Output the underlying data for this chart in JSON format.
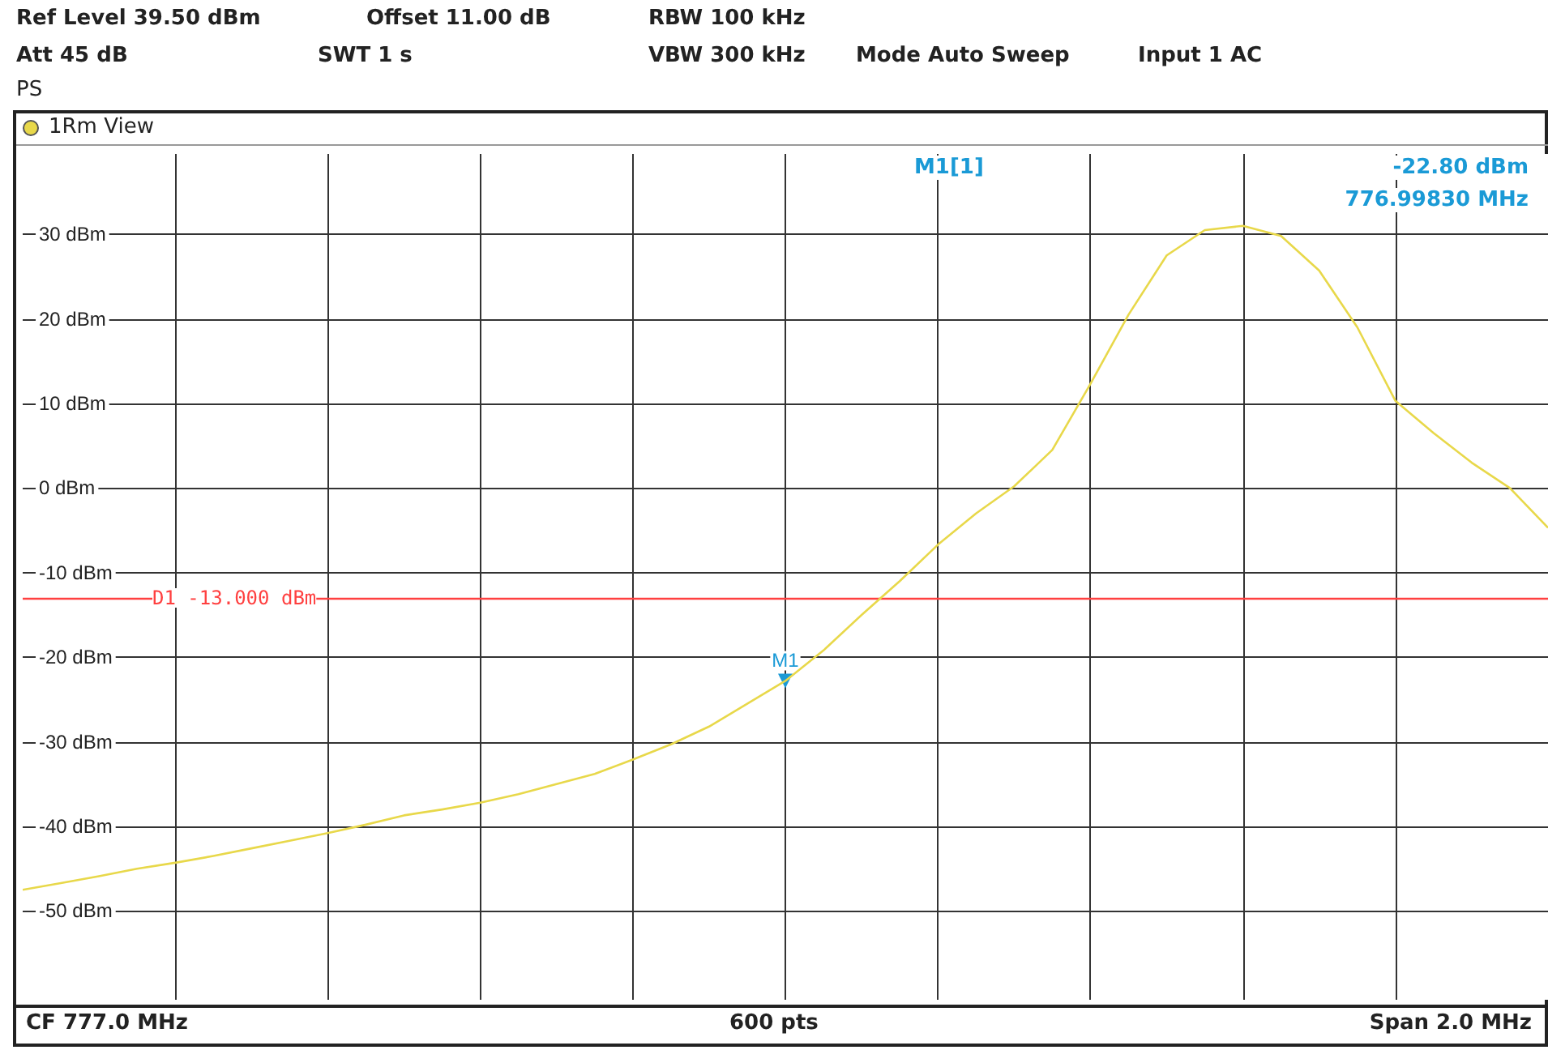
{
  "chart_data": {
    "type": "line",
    "categories": [
      null,
      null,
      null,
      null,
      null,
      null,
      null,
      null,
      null,
      null,
      null,
      null,
      null,
      null,
      null,
      null,
      null,
      null,
      null,
      null,
      null,
      null,
      null,
      null,
      null,
      null,
      null,
      null,
      null,
      null,
      null,
      null,
      null,
      null,
      null,
      null,
      null,
      null,
      null,
      null,
      null
    ],
    "series": [
      {
        "color": "#e8d84a",
        "values": [
          -47.5,
          -46.7,
          -45.9,
          -45.0,
          -44.3,
          -43.5,
          -42.6,
          -41.7,
          -40.8,
          -39.8,
          -38.7,
          -38.0,
          -37.2,
          -36.2,
          -35.0,
          -33.8,
          -32.1,
          -30.3,
          -28.2,
          -25.5,
          -22.8,
          -19.2,
          -15.0,
          -11.0,
          -6.7,
          -3.0,
          0.2,
          4.5,
          12.3,
          20.5,
          27.5,
          30.5,
          31.0,
          29.8,
          25.7,
          19.0,
          10.3,
          6.5,
          3.0,
          0.0,
          -4.7
        ]
      }
    ],
    "ylim": [
      -60.5,
      39.5
    ],
    "yticks": [
      {
        "value": -50,
        "label": "-50 dBm"
      },
      {
        "value": -40,
        "label": "-40 dBm"
      },
      {
        "value": -30,
        "label": "-30 dBm"
      },
      {
        "value": -20,
        "label": "-20 dBm"
      },
      {
        "value": -10,
        "label": "-10 dBm"
      },
      {
        "value": 0,
        "label": "0 dBm"
      },
      {
        "value": 10,
        "label": "10 dBm"
      },
      {
        "value": 20,
        "label": "20 dBm"
      },
      {
        "value": 30,
        "label": "30 dBm"
      }
    ],
    "tick_labels": "y",
    "grid": true,
    "marker": "none",
    "line_style": "solid",
    "ref_lines": [
      {
        "axis": "y",
        "value": -13,
        "label": "D1 -13.000 dBm",
        "color": "#ff4040"
      }
    ],
    "annotations": [
      "Ref Level 39.50 dBm",
      "Offset 11.00 dB",
      "RBW 100 kHz",
      "Att 45 dB",
      "SWT 1 s",
      "VBW 300 kHz",
      "Mode Auto Sweep",
      "Input 1 AC",
      "PS",
      "1Rm View",
      "M1[1]",
      "-22.80 dBm",
      "776.99830 MHz",
      "CF 777.0 MHz",
      "600 pts",
      "Span 2.0 MHz",
      {
        "text": "M1",
        "y": -22.8
      }
    ]
  }
}
